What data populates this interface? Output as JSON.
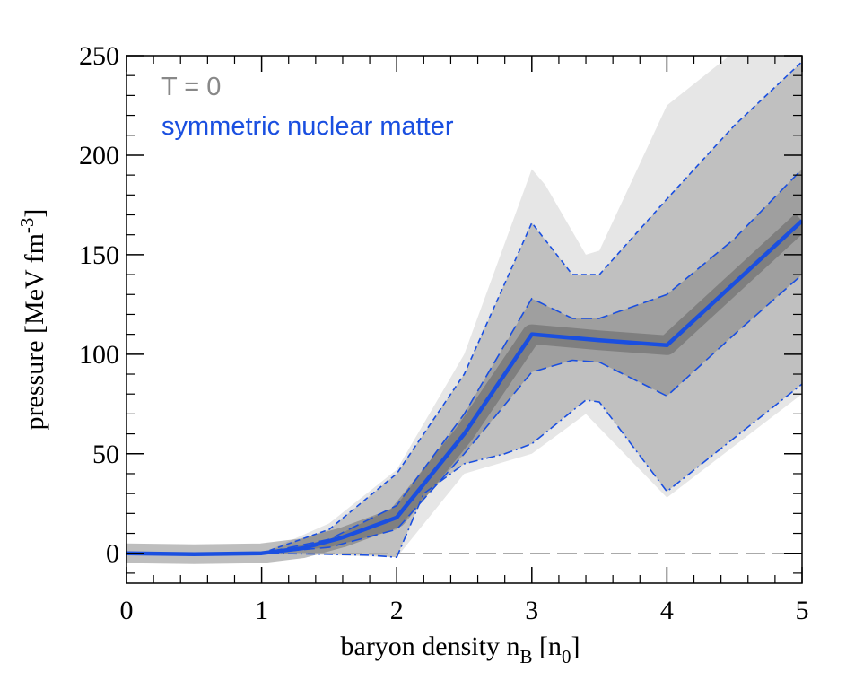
{
  "chart_data": {
    "type": "line",
    "xlabel": "baryon density n",
    "xlabel_sub": "B",
    "xlabel_unit_open": " [n",
    "xlabel_unit_sub": "0",
    "xlabel_unit_close": "]",
    "ylabel": "pressure [MeV fm",
    "ylabel_sup": "-3",
    "ylabel_close": "]",
    "xlim": [
      0,
      5
    ],
    "ylim": [
      -15,
      250
    ],
    "x_ticks": [
      0,
      1,
      2,
      3,
      4,
      5
    ],
    "x_tick_labels": [
      "0",
      "1",
      "2",
      "3",
      "4",
      "5"
    ],
    "y_ticks": [
      0,
      50,
      100,
      150,
      200,
      250
    ],
    "y_tick_labels": [
      "0",
      "50",
      "100",
      "150",
      "200",
      "250"
    ],
    "annotations": [
      {
        "text": "T = 0",
        "color": "#888888"
      },
      {
        "text": "symmetric nuclear matter",
        "color": "#1a4fe0"
      }
    ],
    "reference_line": {
      "y": 0,
      "style": "dashed",
      "color": "#aaaaaa"
    },
    "series": [
      {
        "name": "median",
        "style": "solid",
        "color": "#1a4fe0",
        "x": [
          0,
          0.5,
          1,
          1.3,
          1.6,
          2,
          2.5,
          3,
          3.5,
          4,
          5
        ],
        "y": [
          0,
          -0.5,
          0,
          2.5,
          8,
          18,
          60,
          110,
          107,
          104.5,
          167
        ]
      },
      {
        "name": "band-68-upper",
        "style": "long-dash",
        "color": "#1a4fe0",
        "x": [
          0,
          1,
          1.5,
          2,
          2.5,
          3,
          3.3,
          3.5,
          4,
          4.5,
          5
        ],
        "y": [
          0,
          0,
          7,
          24,
          70,
          128,
          118,
          118,
          130,
          158,
          193
        ]
      },
      {
        "name": "band-68-lower",
        "style": "long-dash",
        "color": "#1a4fe0",
        "x": [
          0,
          1,
          1.5,
          2,
          2.5,
          3,
          3.3,
          3.5,
          4,
          4.5,
          5
        ],
        "y": [
          0,
          0,
          3,
          12,
          50,
          91,
          97,
          96,
          79,
          110,
          140
        ]
      },
      {
        "name": "band-95-upper",
        "style": "short-dash",
        "color": "#1a4fe0",
        "x": [
          0,
          1,
          1.5,
          2,
          2.5,
          3,
          3.3,
          3.5,
          4,
          4.5,
          5
        ],
        "y": [
          0,
          0,
          12,
          40,
          90,
          166,
          140,
          140,
          178,
          215,
          247
        ]
      },
      {
        "name": "band-95-lower",
        "style": "dash-dot",
        "color": "#1a4fe0",
        "x": [
          0,
          1,
          1.5,
          1.8,
          2,
          2.2,
          2.5,
          2.8,
          3,
          3.4,
          3.5,
          4,
          5
        ],
        "y": [
          0,
          0,
          -0.5,
          -1,
          -2,
          30,
          45,
          50,
          55,
          77,
          76,
          31,
          85
        ]
      },
      {
        "name": "spread-upper",
        "style": "fill",
        "color": "#d9d9d9",
        "x": [
          0,
          1,
          1.5,
          2,
          2.5,
          3,
          3.1,
          3.4,
          3.5,
          4,
          4.5,
          5
        ],
        "y": [
          0,
          0,
          15,
          42,
          100,
          193,
          185,
          150,
          152,
          225,
          252,
          252
        ]
      },
      {
        "name": "spread-lower",
        "style": "fill",
        "color": "#d9d9d9",
        "x": [
          0,
          1,
          1.5,
          2,
          2.5,
          3,
          3.4,
          4,
          5
        ],
        "y": [
          0,
          0,
          -1,
          -2,
          40,
          50,
          70,
          28,
          80
        ]
      }
    ]
  }
}
